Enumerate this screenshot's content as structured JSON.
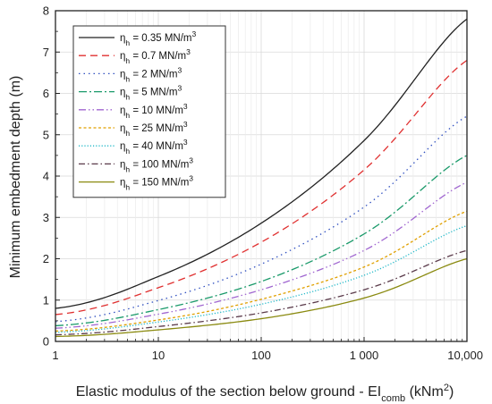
{
  "chart_data": {
    "type": "line",
    "xlabel": "Elastic modulus of the section below ground - EI",
    "xlabel_sub": "comb",
    "xlabel_unit": " (kNm",
    "xlabel_unit_sup": "2",
    "xlabel_unit_end": ")",
    "ylabel": "Minimum embedment depth (m)",
    "x_scale": "log",
    "xlim": [
      1,
      10000
    ],
    "ylim": [
      0,
      8
    ],
    "x_ticks": [
      1,
      10,
      100,
      1000,
      10000
    ],
    "x_tick_labels": [
      "1",
      "10",
      "100",
      "1 000",
      "10,000"
    ],
    "y_ticks": [
      0,
      1,
      2,
      3,
      4,
      5,
      6,
      7,
      8
    ],
    "y_tick_labels": [
      "0",
      "1",
      "2",
      "3",
      "4",
      "5",
      "6",
      "7",
      "8"
    ],
    "grid": true,
    "legend_position": "top-left",
    "legend_symbol": "η",
    "legend_symbol_sub": "h",
    "series": [
      {
        "name": "= 0.35 MN/m",
        "sup": "3",
        "color": "#222222",
        "dash": "",
        "x": [
          1,
          10,
          100,
          1000,
          10000
        ],
        "values": [
          0.8,
          1.57,
          2.86,
          4.86,
          7.8
        ]
      },
      {
        "name": "= 0.7 MN/m",
        "sup": "3",
        "color": "#e03030",
        "dash": "8,5",
        "x": [
          1,
          10,
          100,
          1000,
          10000
        ],
        "values": [
          0.65,
          1.3,
          2.4,
          4.15,
          6.8
        ]
      },
      {
        "name": "= 2 MN/m",
        "sup": "3",
        "color": "#3050c0",
        "dash": "1.5,4",
        "x": [
          1,
          10,
          100,
          1000,
          10000
        ],
        "values": [
          0.48,
          0.99,
          1.87,
          3.25,
          5.45
        ]
      },
      {
        "name": "= 5 MN/m",
        "sup": "3",
        "color": "#1a9a6a",
        "dash": "9,3,2,3",
        "x": [
          1,
          10,
          100,
          1000,
          10000
        ],
        "values": [
          0.38,
          0.77,
          1.45,
          2.6,
          4.5
        ]
      },
      {
        "name": "= 10 MN/m",
        "sup": "3",
        "color": "#a066d0",
        "dash": "8,3,1.5,3,1.5,3",
        "x": [
          1,
          10,
          100,
          1000,
          10000
        ],
        "values": [
          0.32,
          0.66,
          1.25,
          2.2,
          3.85
        ]
      },
      {
        "name": "= 25 MN/m",
        "sup": "3",
        "color": "#e0a000",
        "dash": "3,2.5",
        "x": [
          1,
          10,
          100,
          1000,
          10000
        ],
        "values": [
          0.25,
          0.52,
          1.02,
          1.8,
          3.15
        ]
      },
      {
        "name": "= 40 MN/m",
        "sup": "3",
        "color": "#20b8c8",
        "dash": "1.2,2",
        "x": [
          1,
          10,
          100,
          1000,
          10000
        ],
        "values": [
          0.22,
          0.47,
          0.9,
          1.6,
          2.8
        ]
      },
      {
        "name": "= 100 MN/m",
        "sup": "3",
        "color": "#5a3a4a",
        "dash": "7,3,1.5,3",
        "x": [
          1,
          10,
          100,
          1000,
          10000
        ],
        "values": [
          0.16,
          0.36,
          0.69,
          1.25,
          2.2
        ]
      },
      {
        "name": "= 150 MN/m",
        "sup": "3",
        "color": "#8a8a10",
        "dash": "",
        "x": [
          1,
          10,
          100,
          1000,
          10000
        ],
        "values": [
          0.12,
          0.28,
          0.55,
          1.05,
          2.0
        ]
      }
    ]
  }
}
